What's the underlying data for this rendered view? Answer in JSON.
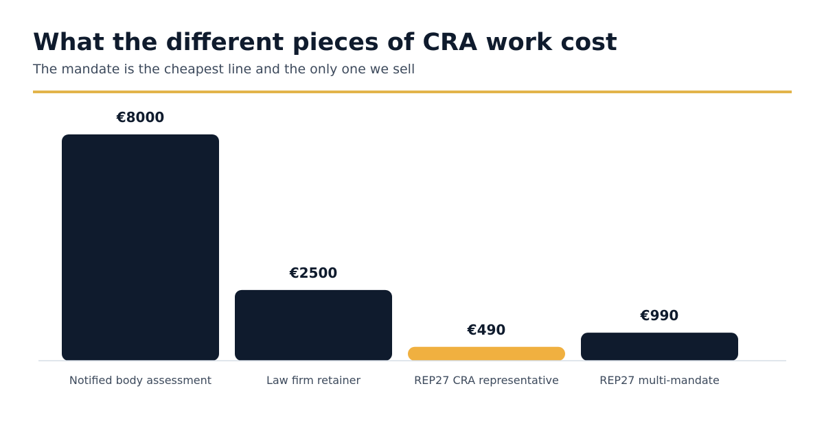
{
  "header": {
    "title": "What the different pieces of CRA work cost",
    "subtitle": "The mandate is the cheapest line and the only one we sell"
  },
  "colors": {
    "bar_default": "#0f1b2d",
    "bar_highlight": "#f0b040",
    "accent_rule": "#e2b44a",
    "axis": "#d6dde6"
  },
  "chart_data": {
    "type": "bar",
    "title": "",
    "xlabel": "",
    "ylabel": "",
    "categories": [
      "Notified body assessment",
      "Law firm retainer",
      "REP27 CRA representative",
      "REP27 multi-mandate"
    ],
    "values": [
      8000,
      2500,
      490,
      990
    ],
    "value_labels": [
      "€8000",
      "€2500",
      "€490",
      "€990"
    ],
    "highlight_index": 2,
    "ylim": [
      0,
      8000
    ],
    "grid": false,
    "legend": "none"
  }
}
